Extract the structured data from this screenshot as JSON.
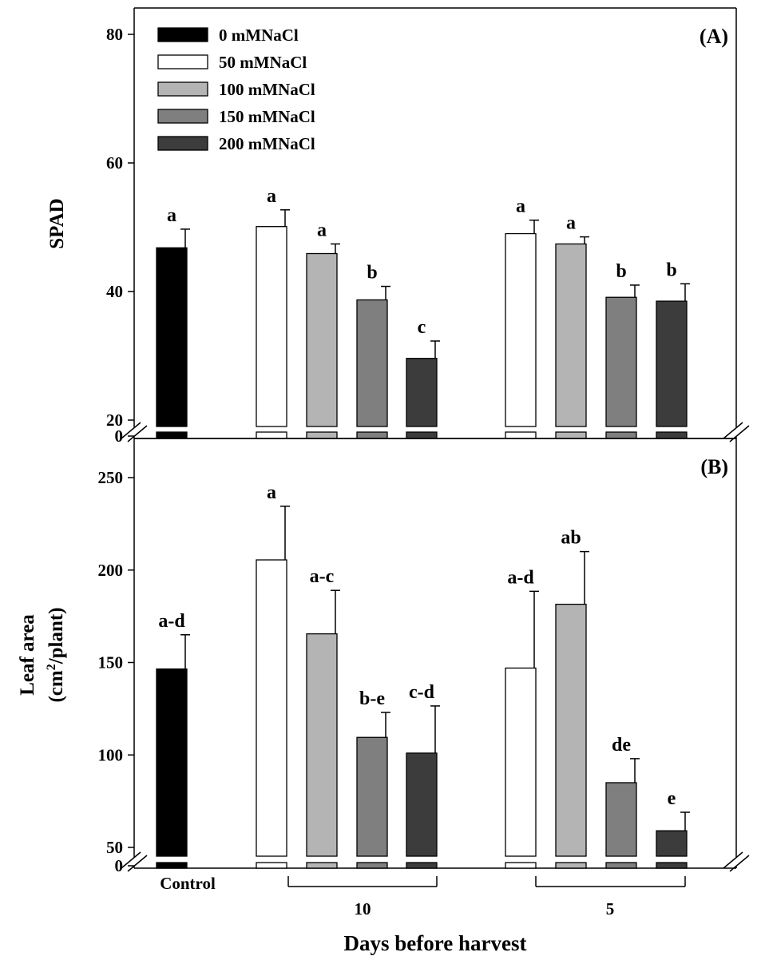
{
  "chart_data": [
    {
      "panel": "(A)",
      "type": "bar",
      "ylabel": "SPAD",
      "yticks": [
        0,
        20,
        40,
        60,
        80
      ],
      "ylim": [
        20,
        80
      ],
      "axis_break": true,
      "legend": {
        "placement": "top-left",
        "entries": [
          "0 mMNaCl",
          "50 mMNaCl",
          "100 mMNaCl",
          "150 mMNaCl",
          "200 mMNaCl"
        ]
      },
      "bars": [
        {
          "group": "Control",
          "treatment": "0 mMNaCl",
          "value": 46.8,
          "error": 2.9,
          "letter": "a"
        },
        {
          "group": "10",
          "treatment": "50 mMNaCl",
          "value": 50.1,
          "error": 2.6,
          "letter": "a"
        },
        {
          "group": "10",
          "treatment": "100 mMNaCl",
          "value": 45.9,
          "error": 1.5,
          "letter": "a"
        },
        {
          "group": "10",
          "treatment": "150 mMNaCl",
          "value": 38.7,
          "error": 2.1,
          "letter": "b"
        },
        {
          "group": "10",
          "treatment": "200 mMNaCl",
          "value": 29.6,
          "error": 2.7,
          "letter": "c"
        },
        {
          "group": "5",
          "treatment": "50 mMNaCl",
          "value": 49.0,
          "error": 2.1,
          "letter": "a"
        },
        {
          "group": "5",
          "treatment": "100 mMNaCl",
          "value": 47.4,
          "error": 1.1,
          "letter": "a"
        },
        {
          "group": "5",
          "treatment": "150 mMNaCl",
          "value": 39.1,
          "error": 1.9,
          "letter": "b"
        },
        {
          "group": "5",
          "treatment": "200 mMNaCl",
          "value": 38.5,
          "error": 2.7,
          "letter": "b"
        }
      ]
    },
    {
      "panel": "(B)",
      "type": "bar",
      "ylabel": "Leaf area",
      "ylabel_unit_prefix": "(cm",
      "ylabel_unit_sup": "2",
      "ylabel_unit_suffix": "/plant)",
      "yticks": [
        0,
        50,
        100,
        150,
        200,
        250
      ],
      "ylim": [
        50,
        270
      ],
      "axis_break": true,
      "bars": [
        {
          "group": "Control",
          "treatment": "0 mMNaCl",
          "value": 146.5,
          "error": 18.5,
          "letter": "a-d"
        },
        {
          "group": "10",
          "treatment": "50 mMNaCl",
          "value": 205.5,
          "error": 29.0,
          "letter": "a"
        },
        {
          "group": "10",
          "treatment": "100 mMNaCl",
          "value": 165.5,
          "error": 23.5,
          "letter": "a-c"
        },
        {
          "group": "10",
          "treatment": "150 mMNaCl",
          "value": 109.5,
          "error": 13.5,
          "letter": "b-e"
        },
        {
          "group": "10",
          "treatment": "200 mMNaCl",
          "value": 101.0,
          "error": 25.5,
          "letter": "c-d"
        },
        {
          "group": "5",
          "treatment": "50 mMNaCl",
          "value": 147.0,
          "error": 41.5,
          "letter": "a-d"
        },
        {
          "group": "5",
          "treatment": "100 mMNaCl",
          "value": 181.5,
          "error": 28.5,
          "letter": "ab"
        },
        {
          "group": "5",
          "treatment": "150 mMNaCl",
          "value": 85.0,
          "error": 13.0,
          "letter": "de"
        },
        {
          "group": "5",
          "treatment": "200 mMNaCl",
          "value": 59.0,
          "error": 10.0,
          "letter": "e"
        }
      ]
    }
  ],
  "x_axis": {
    "groups": [
      {
        "label": "Control",
        "bracket": false
      },
      {
        "label": "10",
        "bracket": true
      },
      {
        "label": "5",
        "bracket": true
      }
    ],
    "title": "Days before harvest"
  },
  "colors": {
    "0 mMNaCl": "#000000",
    "50 mMNaCl": "#ffffff",
    "100 mMNaCl": "#b4b4b4",
    "150 mMNaCl": "#7f7f7f",
    "200 mMNaCl": "#3c3c3c"
  }
}
